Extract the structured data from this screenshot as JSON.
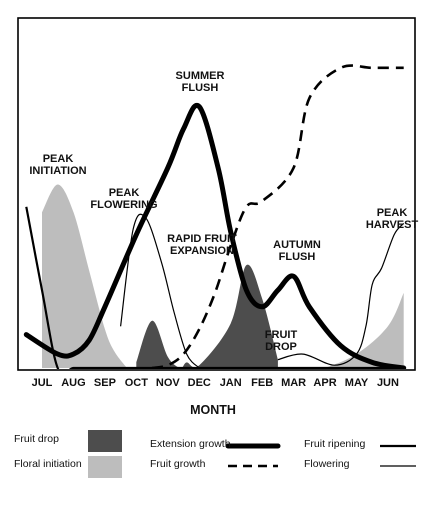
{
  "chart_data": {
    "type": "area",
    "xlabel": "MONTH",
    "ylabel": "",
    "categories": [
      "JUL",
      "AUG",
      "SEP",
      "OCT",
      "NOV",
      "DEC",
      "JAN",
      "FEB",
      "MAR",
      "APR",
      "MAY",
      "JUN"
    ],
    "annotations": [
      {
        "id": "summer_flush",
        "lines": [
          "SUMMER",
          "FLUSH"
        ]
      },
      {
        "id": "peak_initiation",
        "lines": [
          "PEAK",
          "INITIATION"
        ]
      },
      {
        "id": "peak_flowering",
        "lines": [
          "PEAK",
          "FLOWERING"
        ]
      },
      {
        "id": "rapid_fruit_expansion",
        "lines": [
          "RAPID FRUIT",
          "EXPANSION"
        ]
      },
      {
        "id": "autumn_flush",
        "lines": [
          "AUTUMN",
          "FLUSH"
        ]
      },
      {
        "id": "fruit_drop",
        "lines": [
          "FRUIT",
          "DROP"
        ]
      },
      {
        "id": "peak_harvest",
        "lines": [
          "PEAK",
          "HARVEST"
        ]
      }
    ],
    "series": [
      {
        "name": "Floral initiation",
        "style": "area-light",
        "x": [
          0.0,
          0.5,
          1.0,
          1.5,
          2.0,
          2.3,
          2.7
        ],
        "values": [
          0.56,
          0.66,
          0.56,
          0.35,
          0.14,
          0.06,
          0.0
        ],
        "x2": [
          9.0,
          10.0,
          11.0,
          11.5
        ],
        "values2": [
          0.0,
          0.05,
          0.15,
          0.27
        ]
      },
      {
        "name": "Fruit drop",
        "style": "area-dark",
        "x": [
          3.0,
          3.5,
          4.0,
          4.4,
          4.6,
          5.0,
          6.0,
          6.5,
          7.0,
          7.5
        ],
        "values": [
          0.02,
          0.17,
          0.04,
          0.0,
          0.02,
          0.01,
          0.16,
          0.37,
          0.25,
          0.03
        ]
      },
      {
        "name": "Flowering",
        "style": "thin",
        "x": [
          2.5,
          2.9,
          3.3,
          3.8,
          4.2,
          4.6,
          5.0
        ],
        "values": [
          0.15,
          0.5,
          0.54,
          0.38,
          0.2,
          0.05,
          0.0
        ],
        "x2": [
          7.5,
          8.3,
          9.3,
          10.0,
          10.3,
          10.5,
          10.8,
          11.2,
          11.5
        ],
        "values2": [
          0.03,
          0.05,
          0.01,
          0.05,
          0.15,
          0.3,
          0.36,
          0.48,
          0.52
        ]
      },
      {
        "name": "Extension growth",
        "style": "thick",
        "x": [
          -0.5,
          0.5,
          1.0,
          1.5,
          2.0,
          3.0,
          4.0,
          4.5,
          5.0,
          5.6,
          6.0,
          6.5,
          7.0,
          7.5,
          8.0,
          8.5,
          9.5,
          10.5,
          11.5
        ],
        "values": [
          0.12,
          0.05,
          0.05,
          0.1,
          0.22,
          0.48,
          0.72,
          0.86,
          0.94,
          0.72,
          0.49,
          0.28,
          0.22,
          0.28,
          0.33,
          0.22,
          0.08,
          0.02,
          0.0
        ]
      },
      {
        "name": "Fruit growth",
        "style": "dashed",
        "x": [
          3.5,
          4.0,
          4.5,
          5.0,
          5.5,
          6.0,
          6.5,
          7.0,
          8.0,
          8.5,
          9.5,
          10.5,
          11.5
        ],
        "values": [
          0.0,
          0.01,
          0.05,
          0.14,
          0.27,
          0.44,
          0.58,
          0.6,
          0.72,
          0.97,
          1.08,
          1.08,
          1.08
        ]
      },
      {
        "name": "Fruit ripening",
        "style": "medium",
        "x": [
          -0.5,
          0.0,
          0.5,
          1.0,
          1.5,
          2.0,
          3.0,
          6.8,
          7.0,
          7.5,
          8.0,
          9.0,
          10.0,
          11.0,
          11.5
        ],
        "values": [
          0.58,
          0.28,
          0.0,
          0.0,
          0.0,
          0.0,
          0.0,
          0.0,
          0.0,
          0.0,
          0.0,
          0.0,
          0.0,
          0.0,
          0.0
        ]
      }
    ],
    "legend": [
      {
        "label": "Fruit drop",
        "style": "area-dark"
      },
      {
        "label": "Floral initiation",
        "style": "area-light"
      },
      {
        "label": "Extension growth",
        "style": "thick"
      },
      {
        "label": "Fruit growth",
        "style": "dashed"
      },
      {
        "label": "Fruit ripening",
        "style": "medium"
      },
      {
        "label": "Flowering",
        "style": "thin"
      }
    ],
    "legend_position": "bottom",
    "grid": false,
    "colors": {
      "dark": "#4d4d4d",
      "light": "#bdbdbd",
      "line": "#000000"
    }
  }
}
